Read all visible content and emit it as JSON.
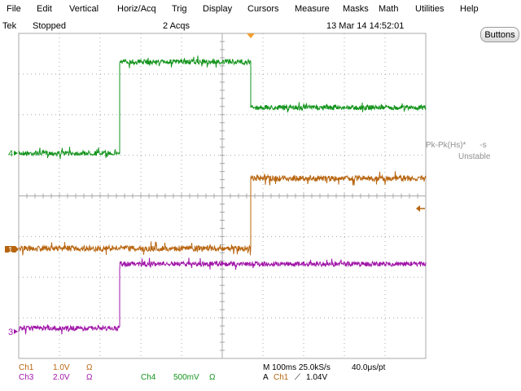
{
  "menu": [
    "File",
    "Edit",
    "Vertical",
    "Horiz/Acq",
    "Trig",
    "Display",
    "Cursors",
    "Measure",
    "Masks",
    "Math",
    "Utilities",
    "Help"
  ],
  "status": {
    "brand": "Tek",
    "run_state": "Stopped",
    "acqs": "2 Acqs",
    "datetime": "13 Mar 14 14:52:01"
  },
  "buttons_label": "Buttons",
  "colors": {
    "ch1": "#b8650f",
    "ch3": "#a014a8",
    "ch4": "#13941c",
    "grid": "#a8a8a8",
    "trigger": "#f0a030"
  },
  "channel_markers": {
    "ch4": "4",
    "ch1": "1",
    "ch3": "3"
  },
  "measurement": {
    "name": "Pk-Pk(Hs)*",
    "value": "-s",
    "state": "Unstable"
  },
  "readouts": {
    "ch1": {
      "label": "Ch1",
      "scale": "1.0V",
      "unit": "Ω"
    },
    "ch3": {
      "label": "Ch3",
      "scale": "2.0V",
      "unit": "Ω"
    },
    "ch4": {
      "label": "Ch4",
      "scale": "500mV",
      "unit": "Ω"
    },
    "timebase": "M 100ms 25.0kS/s",
    "sample_interval": "40.0μs/pt",
    "trigger": {
      "mode": "A",
      "source": "Ch1",
      "slope": "⟋",
      "level": "1.04V"
    }
  }
}
